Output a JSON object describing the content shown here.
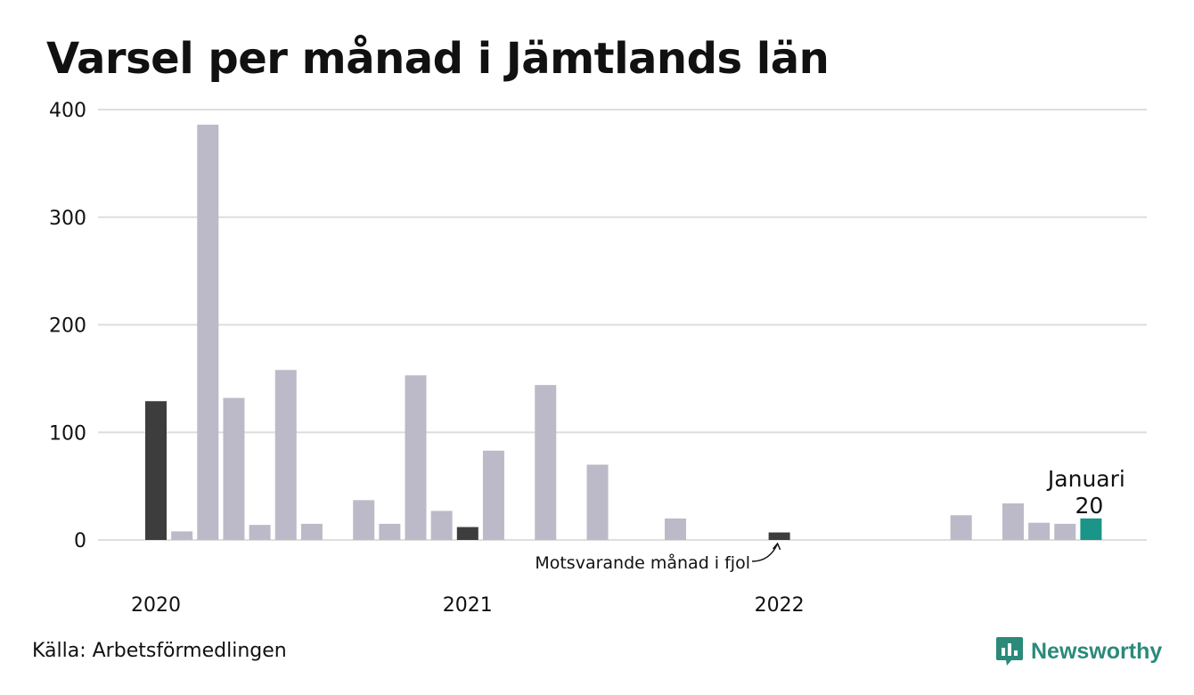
{
  "title": "Varsel per månad i Jämtlands län",
  "source": "Källa: Arbetsförmedlingen",
  "logo": {
    "name": "Newsworthy",
    "icon": "newsworthy-logo-icon"
  },
  "colors": {
    "default": "#bcbac8",
    "highlight": "#3d3d3d",
    "current": "#1a9587",
    "grid": "#dedede",
    "text": "#111111"
  },
  "chart_data": {
    "type": "bar",
    "title": "Varsel per månad i Jämtlands län",
    "xlabel": "",
    "ylabel": "",
    "ylim": [
      0,
      400
    ],
    "yticks": [
      "0",
      "100",
      "200",
      "300",
      "400"
    ],
    "ytick_values": [
      0,
      100,
      200,
      300,
      400
    ],
    "year_labels": [
      {
        "label": "2020",
        "month_index": 0
      },
      {
        "label": "2021",
        "month_index": 12
      },
      {
        "label": "2022",
        "month_index": 24
      }
    ],
    "grid": true,
    "months": [
      "2020-01",
      "2020-02",
      "2020-03",
      "2020-04",
      "2020-05",
      "2020-06",
      "2020-07",
      "2020-08",
      "2020-09",
      "2020-10",
      "2020-11",
      "2020-12",
      "2021-01",
      "2021-02",
      "2021-03",
      "2021-04",
      "2021-05",
      "2021-06",
      "2021-07",
      "2021-08",
      "2021-09",
      "2021-10",
      "2021-11",
      "2021-12",
      "2022-01",
      "2022-02",
      "2022-03",
      "2022-04",
      "2022-05",
      "2022-06",
      "2022-07",
      "2022-08",
      "2022-09",
      "2022-10",
      "2022-11",
      "2022-12",
      "2023-01"
    ],
    "values": [
      129,
      8,
      386,
      132,
      14,
      158,
      15,
      0,
      37,
      15,
      153,
      27,
      12,
      83,
      0,
      144,
      0,
      70,
      0,
      0,
      20,
      0,
      0,
      0,
      7,
      0,
      0,
      0,
      0,
      0,
      0,
      23,
      0,
      34,
      16,
      15,
      20
    ],
    "highlighted": [
      "2020-01",
      "2021-01",
      "2022-01"
    ],
    "current": "2023-01",
    "annotations": {
      "current_label": "Januari",
      "current_value": "20",
      "prev_year_label": "Motsvarande månad i fjol"
    }
  }
}
